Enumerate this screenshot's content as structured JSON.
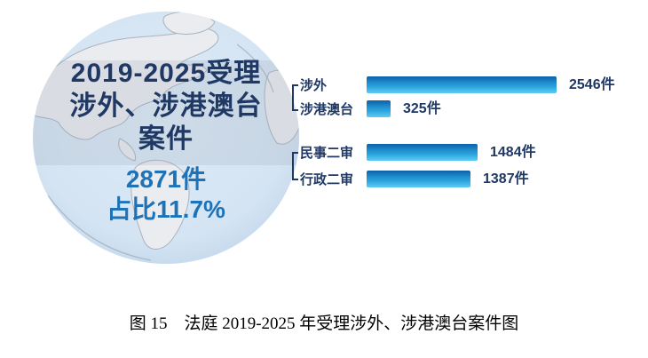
{
  "figure": {
    "globe": {
      "title_line1": "2019-2025受理",
      "title_line2": "涉外、涉港澳台",
      "title_line3": "案件",
      "total_label": "2871件",
      "share_label": "占比11.7%"
    },
    "caption": "图 15　法庭 2019-2025 年受理涉外、涉港澳台案件图"
  },
  "chart_data": {
    "type": "bar",
    "orientation": "horizontal",
    "title": "2019-2025受理涉外、涉港澳台案件",
    "unit": "件",
    "categories": [
      "涉外",
      "涉港澳台",
      "民事二审",
      "行政二审"
    ],
    "values": [
      2546,
      325,
      1484,
      1387
    ],
    "value_labels": [
      "2546件",
      "325件",
      "1484件",
      "1387件"
    ],
    "groups": [
      [
        0,
        1
      ],
      [
        2,
        3
      ]
    ],
    "xlim": [
      0,
      2546
    ],
    "grid": false,
    "legend": false,
    "total_cases": 2871,
    "share_percent": 11.7
  },
  "colors": {
    "bar_gradient_top": "#0f5fa8",
    "bar_gradient_mid": "#2aa2dd",
    "bar_gradient_bottom": "#5fcdf3",
    "label_navy": "#1f3864",
    "number_blue": "#1e73b8",
    "globe_fill": "#d4e4f3",
    "continent_gray": "#eaecef"
  }
}
